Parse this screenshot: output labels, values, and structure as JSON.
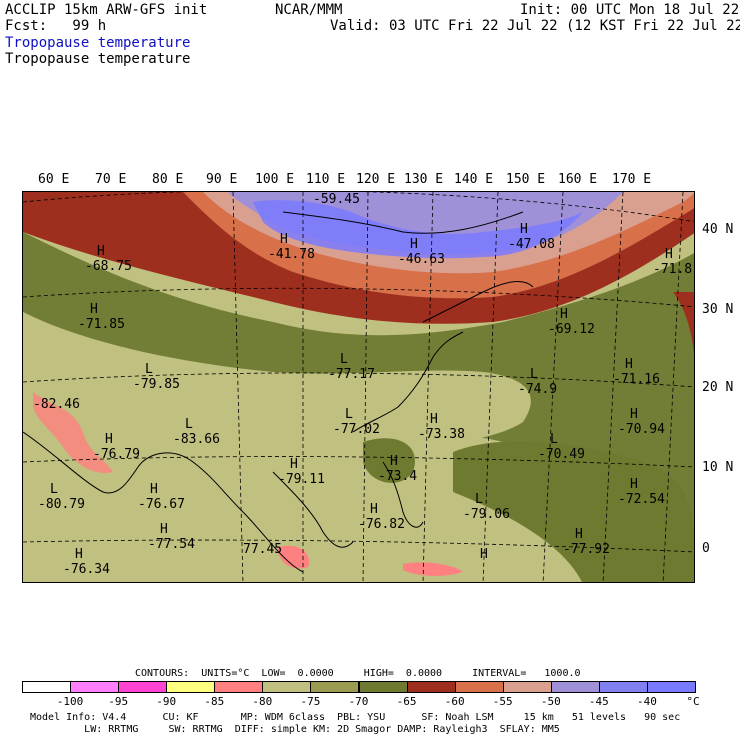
{
  "header": {
    "model": "ACCLIP 15km ARW-GFS init",
    "fcst": "Fcst:   99 h",
    "org": "NCAR/MMM",
    "init": "Init: 00 UTC Mon 18 Jul 22",
    "valid": "Valid: 03 UTC Fri 22 Jul 22 (12 KST Fri 22 Jul 22)",
    "field1": "Tropopause temperature",
    "field2": "Tropopause temperature"
  },
  "map": {
    "lon_labels": [
      "60 E",
      "70 E",
      "80 E",
      "90 E",
      "100 E",
      "110 E",
      "120 E",
      "130 E",
      "140 E",
      "150 E",
      "160 E",
      "170 E"
    ],
    "lat_labels": [
      "40 N",
      "30 N",
      "20 N",
      "10 N",
      "0"
    ],
    "extrema": [
      {
        "t": "H",
        "v": "-68.75"
      },
      {
        "t": "H",
        "v": "-71.85"
      },
      {
        "t": "L",
        "v": "-79.85"
      },
      {
        "t": "",
        "v": "-82.46"
      },
      {
        "t": "H",
        "v": "-76.79"
      },
      {
        "t": "L",
        "v": "-83.66"
      },
      {
        "t": "L",
        "v": "-80.79"
      },
      {
        "t": "H",
        "v": "-76.67"
      },
      {
        "t": "H",
        "v": "-77.54"
      },
      {
        "t": "H",
        "v": "-76.34"
      },
      {
        "t": "",
        "v": "77.45"
      },
      {
        "t": "H",
        "v": "-79.11"
      },
      {
        "t": "",
        "v": "-59.45"
      },
      {
        "t": "H",
        "v": "-41.78"
      },
      {
        "t": "H",
        "v": "-46.63"
      },
      {
        "t": "H",
        "v": "-47.08"
      },
      {
        "t": "L",
        "v": "-77.17"
      },
      {
        "t": "L",
        "v": "-77.02"
      },
      {
        "t": "H",
        "v": "-73.38"
      },
      {
        "t": "H",
        "v": "-73.4"
      },
      {
        "t": "H",
        "v": "-76.82"
      },
      {
        "t": "L",
        "v": "-79.06"
      },
      {
        "t": "H",
        "v": "-69.12"
      },
      {
        "t": "L",
        "v": "-74.9"
      },
      {
        "t": "H",
        "v": "-71.16"
      },
      {
        "t": "H",
        "v": "-70.94"
      },
      {
        "t": "L",
        "v": "-70.49"
      },
      {
        "t": "H",
        "v": "-72.54"
      },
      {
        "t": "H",
        "v": "-77.92"
      },
      {
        "t": "H",
        "v": "-71.8"
      },
      {
        "t": "H",
        "v": ""
      }
    ]
  },
  "contours": {
    "text": "CONTOURS:  UNITS=°C  LOW=  0.0000     HIGH=  0.0000     INTERVAL=   1000.0"
  },
  "colorbar": {
    "colors": [
      "#ffffff",
      "#ff7fff",
      "#ff44d4",
      "#ffff80",
      "#ff8080",
      "#c0c080",
      "#9a9a50",
      "#6e7a30",
      "#9e2f1e",
      "#d8704a",
      "#d9a090",
      "#a090d8",
      "#8080f0",
      "#7a7aff"
    ],
    "ticks": [
      "-100",
      "-95",
      "-90",
      "-85",
      "-80",
      "-75",
      "-70",
      "-65",
      "-60",
      "-55",
      "-50",
      "-45",
      "-40",
      "°C"
    ]
  },
  "footer": {
    "line1": "Model Info: V4.4      CU: KF       MP: WDM 6class  PBL: YSU      SF: Noah LSM     15 km   51 levels   90 sec",
    "line2": "         LW: RRTMG     SW: RRTMG  DIFF: simple KM: 2D Smagor DAMP: Rayleigh3  SFLAY: MM5"
  }
}
